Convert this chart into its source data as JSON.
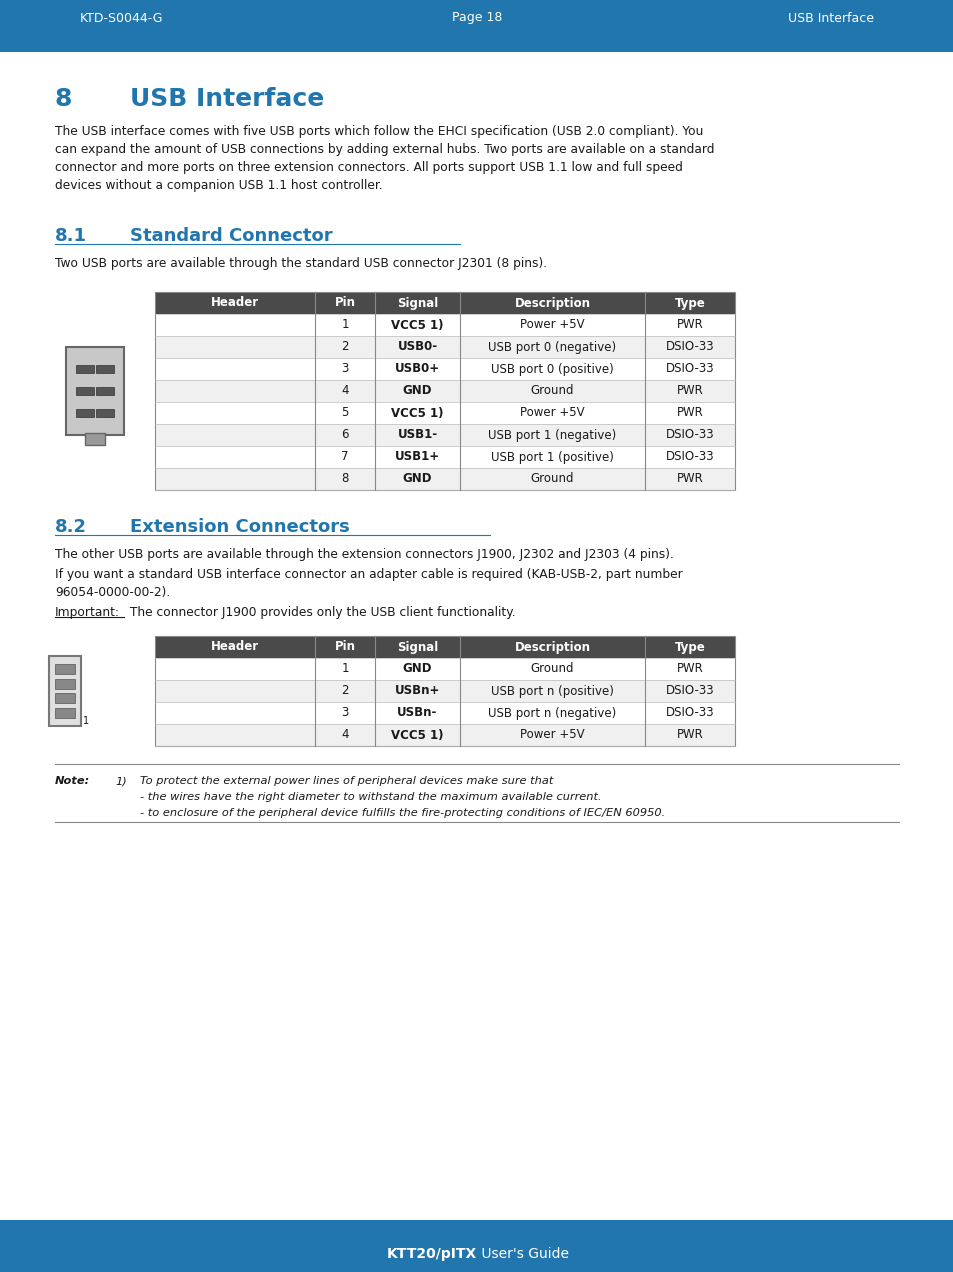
{
  "header_bg": "#2176ae",
  "header_text_color": "#ffffff",
  "header_left": "KTD-S0044-G",
  "header_center": "Page 18",
  "header_right": "USB Interface",
  "footer_bold_part": "KTT20/pITX",
  "footer_normal_part": " User's Guide",
  "bg_color": "#ffffff",
  "section_num_color": "#2176ae",
  "section_title_color": "#2176ae",
  "body_text_color": "#1a1a1a",
  "table_header_bg": "#4a4a4a",
  "table_header_text": "#ffffff",
  "table_row_alt": "#f0f0f0",
  "table_row_normal": "#ffffff",
  "table_border": "#888888",
  "table_line": "#bbbbbb",
  "table1_headers": [
    "Header",
    "Pin",
    "Signal",
    "Description",
    "Type"
  ],
  "table1_rows": [
    [
      "",
      "1",
      "VCC5 1)",
      "Power +5V",
      "PWR"
    ],
    [
      "",
      "2",
      "USB0-",
      "USB port 0 (negative)",
      "DSIO-33"
    ],
    [
      "",
      "3",
      "USB0+",
      "USB port 0 (positive)",
      "DSIO-33"
    ],
    [
      "",
      "4",
      "GND",
      "Ground",
      "PWR"
    ],
    [
      "",
      "5",
      "VCC5 1)",
      "Power +5V",
      "PWR"
    ],
    [
      "",
      "6",
      "USB1-",
      "USB port 1 (negative)",
      "DSIO-33"
    ],
    [
      "",
      "7",
      "USB1+",
      "USB port 1 (positive)",
      "DSIO-33"
    ],
    [
      "",
      "8",
      "GND",
      "Ground",
      "PWR"
    ]
  ],
  "table2_headers": [
    "Header",
    "Pin",
    "Signal",
    "Description",
    "Type"
  ],
  "table2_rows": [
    [
      "",
      "1",
      "GND",
      "Ground",
      "PWR"
    ],
    [
      "",
      "2",
      "USBn+",
      "USB port n (positive)",
      "DSIO-33"
    ],
    [
      "",
      "3",
      "USBn-",
      "USB port n (negative)",
      "DSIO-33"
    ],
    [
      "",
      "4",
      "VCC5 1)",
      "Power +5V",
      "PWR"
    ]
  ],
  "note_text_line1": "To protect the external power lines of peripheral devices make sure that",
  "note_text_line2": "- the wires have the right diameter to withstand the maximum available current.",
  "note_text_line3": "- to enclosure of the peripheral device fulfills the fire-protecting conditions of IEC/EN 60950."
}
